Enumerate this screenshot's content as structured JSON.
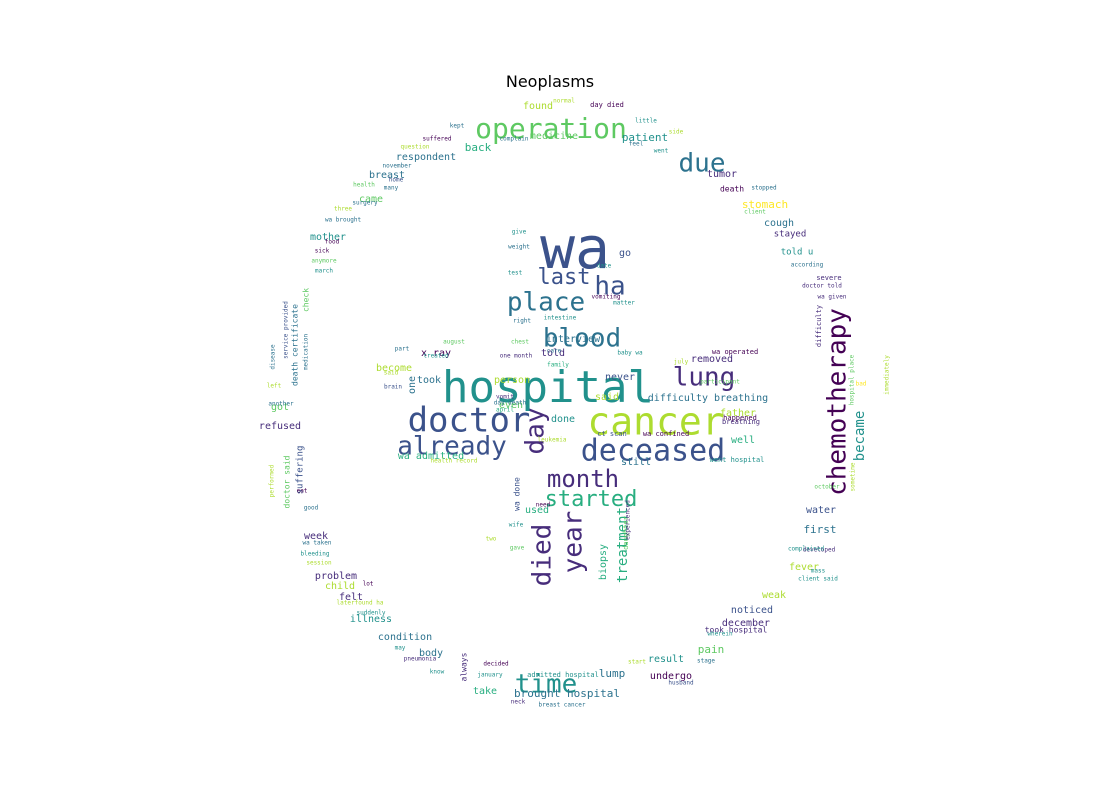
{
  "title": "Neoplasms",
  "palette": {
    "purple": "#440154",
    "indigo": "#472d7b",
    "blue": "#3b528b",
    "steel": "#2c728e",
    "teal": "#21918c",
    "green": "#28ae80",
    "lime": "#5ec962",
    "yellowgreen": "#addc30",
    "yellow": "#fde725"
  },
  "words": [
    "wa",
    "hospital",
    "cancer",
    "doctor",
    "deceased",
    "operation",
    "already",
    "chemotherapy",
    "place",
    "blood",
    "lung",
    "month",
    "started",
    "day",
    "due",
    "year",
    "died",
    "time",
    "last",
    "ha",
    "became",
    "treatment",
    "difficulty breathing",
    "removed",
    "x ray",
    "interview",
    "took",
    "told",
    "said",
    "even",
    "done",
    "never",
    "still",
    "father",
    "well",
    "wa admitted",
    "got",
    "refused",
    "become",
    "person",
    "wa done",
    "used",
    "biopsy",
    "brought hospital",
    "lump",
    "undergo",
    "result",
    "pain",
    "take",
    "always",
    "body",
    "condition",
    "illness",
    "felt",
    "child",
    "problem",
    "week",
    "suffering",
    "doctor said",
    "death certificate",
    "check",
    "mother",
    "came",
    "breast",
    "respondent",
    "back",
    "patient",
    "medicine",
    "found",
    "tumor",
    "death",
    "stomach",
    "cough",
    "stayed",
    "told u",
    "water",
    "first",
    "fever",
    "weak",
    "noticed",
    "december",
    "took hospital",
    "admitted hospital",
    "went hospital",
    "wa confined",
    "ct scan",
    "breathing",
    "happened",
    "wa operated",
    "go",
    "sick",
    "food",
    "march",
    "anymore",
    "wa brought",
    "surgery",
    "health",
    "home",
    "many",
    "november",
    "suffered",
    "kept",
    "little",
    "day died",
    "normal",
    "side",
    "feel",
    "went",
    "complain",
    "stopped",
    "client",
    "according",
    "severe",
    "doctor told",
    "wa given",
    "difficulty",
    "hospital place",
    "bad",
    "immediately",
    "another",
    "eat",
    "good",
    "wa taken",
    "bleeding",
    "session",
    "lot",
    "laterfound ha",
    "suddenly",
    "may",
    "pneumonia",
    "know",
    "decided",
    "january",
    "start",
    "stage",
    "husband",
    "wherein",
    "neck",
    "breast cancer",
    "developed",
    "complained",
    "mass",
    "client said",
    "october",
    "sometime",
    "give",
    "weight",
    "test",
    "right",
    "intestine",
    "vomiting",
    "date",
    "chest",
    "care",
    "august",
    "part",
    "treated",
    "one month",
    "baby wa",
    "july",
    "participant",
    "family",
    "vomit",
    "brain",
    "april",
    "day death",
    "wife",
    "need",
    "two",
    "gave",
    "daughter",
    "experienced",
    "said",
    "left",
    "disease",
    "service provided",
    "medication",
    "performed",
    "health record",
    "leukemia",
    "three",
    "matter",
    "question",
    "one"
  ]
}
